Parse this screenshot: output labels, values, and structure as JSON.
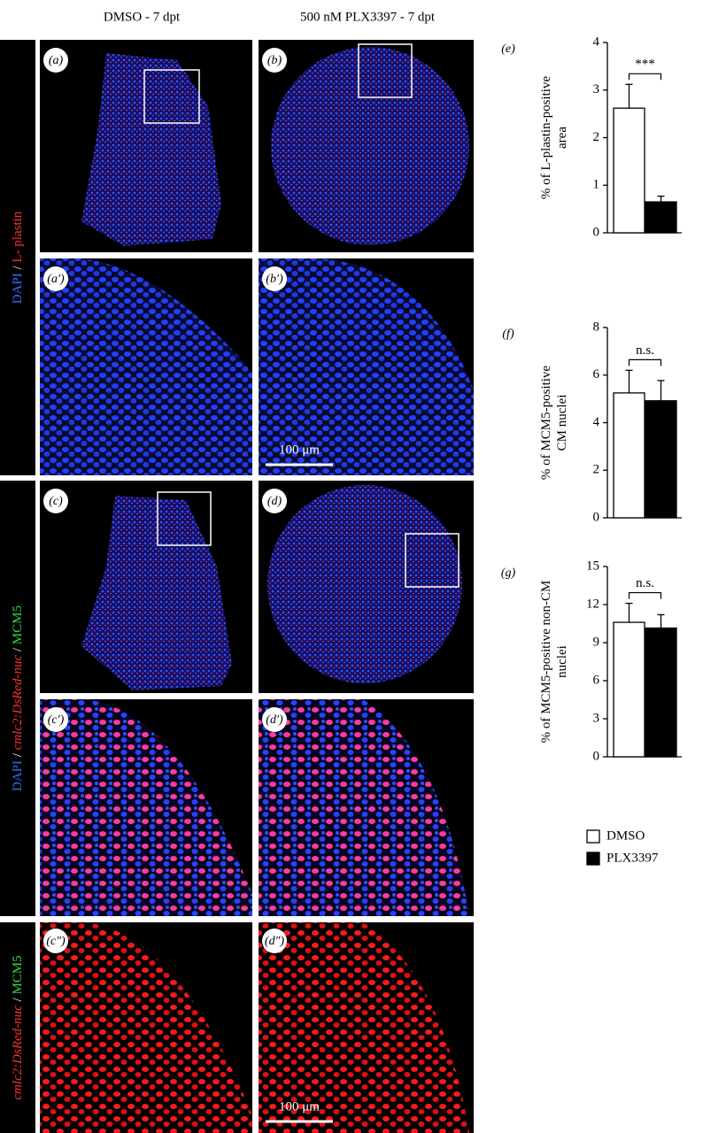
{
  "figure": {
    "columns": [
      "DMSO - 7 dpt",
      "500 nM PLX3397 - 7 dpt"
    ],
    "panels": [
      "(a)",
      "(b)",
      "(a′)",
      "(b′)",
      "(c)",
      "(d)",
      "(c′)",
      "(d′)",
      "(c″)",
      "(d″)"
    ],
    "side_labels": [
      [
        {
          "text": "DAPI",
          "color": "#3b6cff"
        },
        {
          "text": " / ",
          "color": "#ffffff"
        },
        {
          "text": "L- plastin",
          "color": "#ff3030"
        }
      ],
      [
        {
          "text": "DAPI",
          "color": "#3b6cff"
        },
        {
          "text": " / ",
          "color": "#ffffff"
        },
        {
          "text": "cmlc2:DsRed-nuc",
          "color": "#ff3030"
        },
        {
          "text": " / ",
          "color": "#ffffff"
        },
        {
          "text": "MCM5",
          "color": "#30e040"
        }
      ],
      [
        {
          "text": "cmlc2:DsRed-nuc",
          "color": "#ff3030"
        },
        {
          "text": " / ",
          "color": "#ffffff"
        },
        {
          "text": "MCM5",
          "color": "#30e040"
        }
      ]
    ],
    "scale_bars": [
      "100 μm",
      "100 μm"
    ]
  },
  "legend": {
    "items": [
      {
        "name": "DMSO",
        "color": "#ffffff"
      },
      {
        "name": "PLX3397",
        "color": "#000000"
      }
    ]
  },
  "chart_data": [
    {
      "type": "bar",
      "panel": "(e)",
      "ylabel": [
        "% of L-plastin-positive",
        "area"
      ],
      "values": [
        2.62,
        0.65
      ],
      "errors": [
        0.5,
        0.12
      ],
      "ylim": [
        0,
        4
      ],
      "yticks": [
        0,
        1,
        2,
        3,
        4
      ],
      "annotation": "***"
    },
    {
      "type": "bar",
      "panel": "(f)",
      "ylabel": [
        "% of MCM5-positive",
        "CM nuclei"
      ],
      "values": [
        5.25,
        4.92
      ],
      "errors": [
        0.95,
        0.85
      ],
      "ylim": [
        0,
        8
      ],
      "yticks": [
        0,
        2,
        4,
        6,
        8
      ],
      "annotation": "n.s."
    },
    {
      "type": "bar",
      "panel": "(g)",
      "ylabel": [
        "% of MCM5-positive non-CM",
        "nuclei"
      ],
      "values": [
        10.6,
        10.15
      ],
      "errors": [
        1.5,
        1.05
      ],
      "ylim": [
        0,
        15
      ],
      "yticks": [
        0,
        3,
        6,
        9,
        12,
        15
      ],
      "annotation": "n.s."
    }
  ]
}
